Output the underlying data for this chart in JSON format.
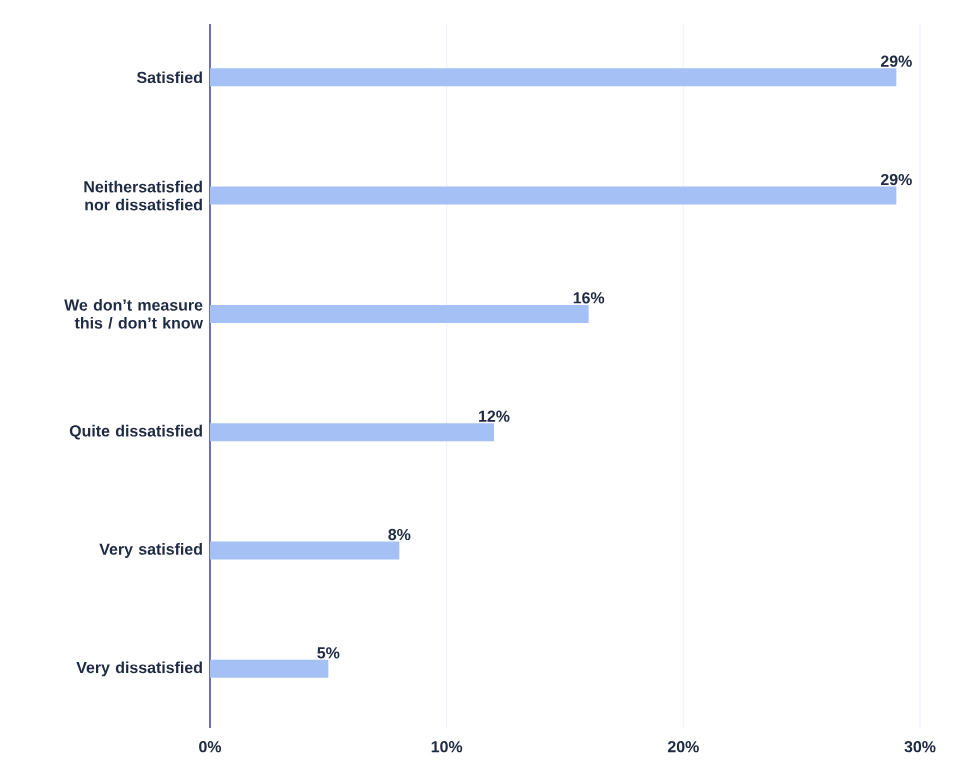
{
  "chart_data": {
    "type": "bar",
    "orientation": "horizontal",
    "categories": [
      "Satisfied",
      "Neithersatisfied nor dissatisfied",
      "We don’t measure this / don’t know",
      "Quite dissatisfied",
      "Very satisfied",
      "Very dissatisfied"
    ],
    "values": [
      29,
      29,
      16,
      12,
      8,
      5
    ],
    "value_labels": [
      "29%",
      "29%",
      "16%",
      "12%",
      "8%",
      "5%"
    ],
    "color": "#a4c0f4",
    "xlim": [
      0,
      30
    ],
    "xticks": [
      {
        "value": 0,
        "label": "0%"
      },
      {
        "value": 10,
        "label": "10%"
      },
      {
        "value": 20,
        "label": "20%"
      },
      {
        "value": 30,
        "label": "30%"
      }
    ],
    "grid": "x"
  }
}
